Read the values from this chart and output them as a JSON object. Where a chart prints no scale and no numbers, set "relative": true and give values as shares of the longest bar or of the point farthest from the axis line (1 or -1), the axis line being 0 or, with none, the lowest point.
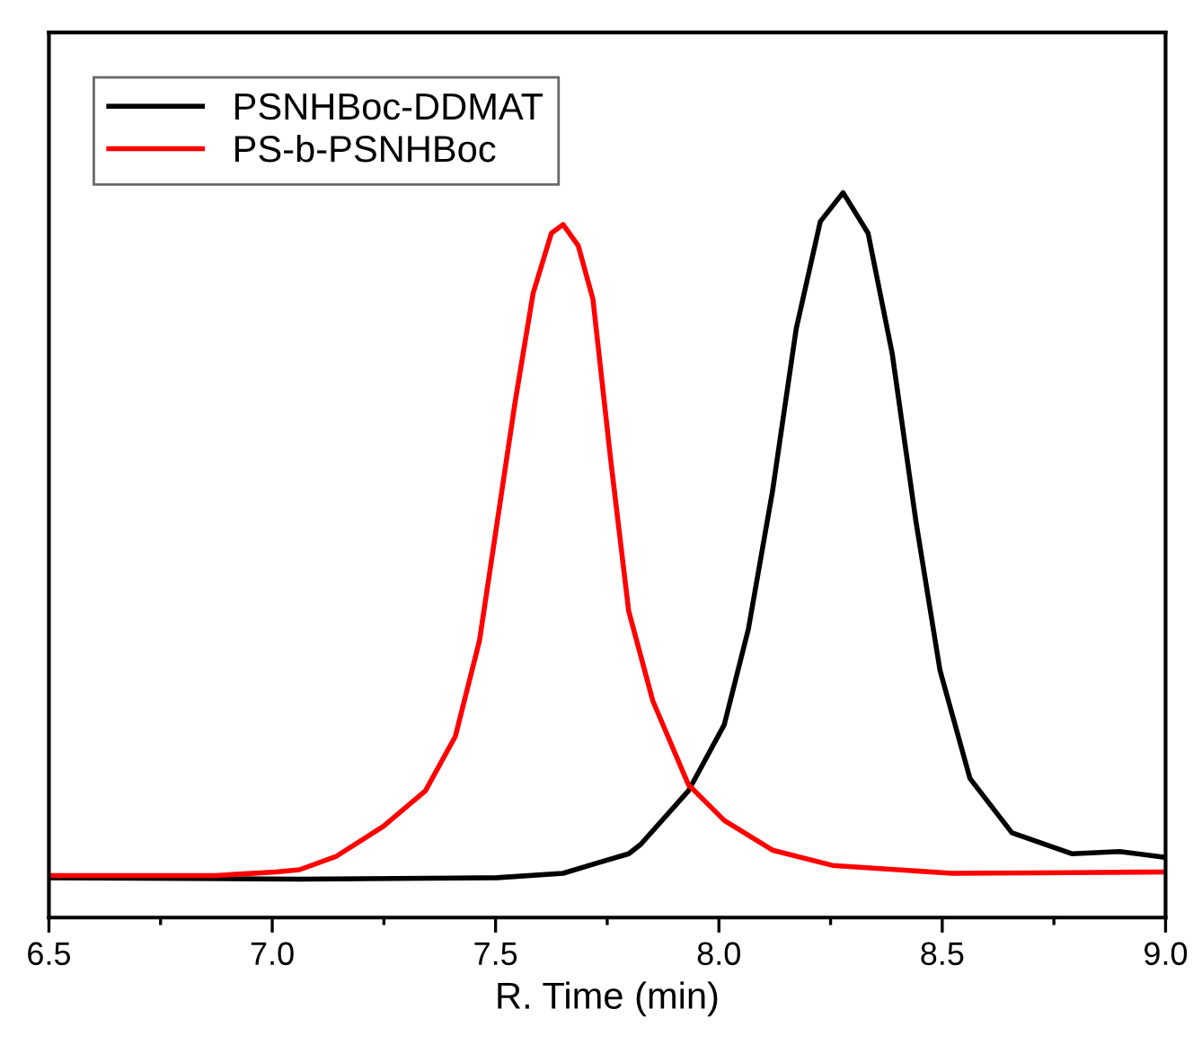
{
  "chart_data": {
    "type": "line",
    "xlabel": "R. Time (min)",
    "relative": true,
    "legend": "top left",
    "grid": false,
    "line_style": "solid",
    "tick_labels": "x",
    "xlim": [
      6.5,
      9.0
    ],
    "xticks": [
      {
        "value": 6.5,
        "label": "6.5"
      },
      {
        "value": 7.0,
        "label": "7.0"
      },
      {
        "value": 7.5,
        "label": "7.5"
      },
      {
        "value": 8.0,
        "label": "8.0"
      },
      {
        "value": 8.5,
        "label": "8.5"
      },
      {
        "value": 9.0,
        "label": "9.0"
      }
    ],
    "series": [
      {
        "name": "PSNHBoc-DDMAT",
        "color": "#000000",
        "x": [
          6.5,
          7.061,
          7.504,
          7.651,
          7.732,
          7.798,
          7.825,
          7.932,
          8.012,
          8.066,
          8.12,
          8.173,
          8.227,
          8.278,
          8.334,
          8.388,
          8.441,
          8.495,
          8.562,
          8.656,
          8.79,
          8.897,
          9.0
        ],
        "values": [
          0.055,
          0.053,
          0.055,
          0.061,
          0.076,
          0.088,
          0.101,
          0.175,
          0.266,
          0.398,
          0.588,
          0.812,
          0.96,
          1.0,
          0.944,
          0.778,
          0.547,
          0.341,
          0.192,
          0.117,
          0.088,
          0.091,
          0.083
        ]
      },
      {
        "name": "PS-b-PSNHBoc",
        "color": "#ff0000",
        "x": [
          6.5,
          6.874,
          7.008,
          7.061,
          7.142,
          7.249,
          7.343,
          7.41,
          7.464,
          7.504,
          7.544,
          7.584,
          7.625,
          7.651,
          7.685,
          7.718,
          7.758,
          7.798,
          7.852,
          7.932,
          8.012,
          8.12,
          8.254,
          8.522,
          8.79,
          9.0
        ],
        "values": [
          0.058,
          0.058,
          0.063,
          0.066,
          0.084,
          0.126,
          0.175,
          0.25,
          0.382,
          0.547,
          0.712,
          0.861,
          0.944,
          0.956,
          0.927,
          0.853,
          0.63,
          0.423,
          0.299,
          0.183,
          0.134,
          0.093,
          0.072,
          0.061,
          0.062,
          0.063
        ]
      }
    ]
  }
}
